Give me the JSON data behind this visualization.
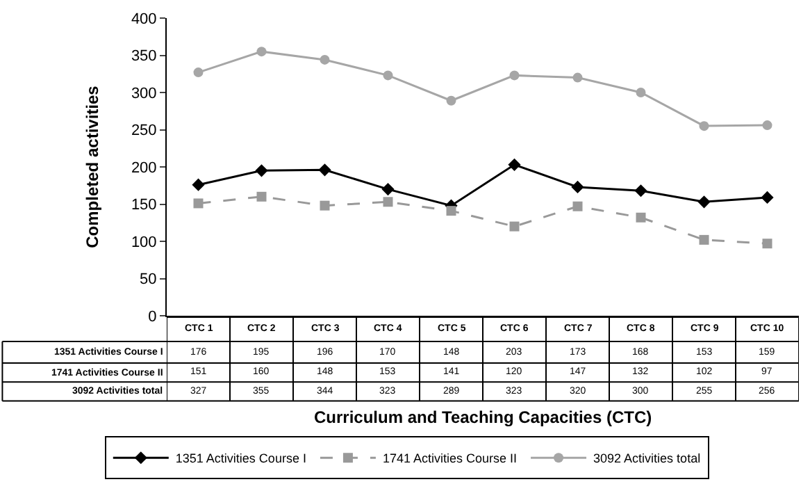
{
  "chart_data": {
    "type": "line",
    "xlabel": "Curriculum and Teaching Capacities (CTC)",
    "ylabel": "Completed activities",
    "categories": [
      "CTC 1",
      "CTC 2",
      "CTC 3",
      "CTC 4",
      "CTC 5",
      "CTC 6",
      "CTC 7",
      "CTC 8",
      "CTC 9",
      "CTC 10"
    ],
    "series": [
      {
        "name": "1351 Activities Course I",
        "color": "#000000",
        "marker": "diamond",
        "line_style": "solid",
        "values": [
          176,
          195,
          196,
          170,
          148,
          203,
          173,
          168,
          153,
          159
        ]
      },
      {
        "name": "1741 Activities Course II",
        "color": "#999999",
        "marker": "square",
        "line_style": "dashed",
        "values": [
          151,
          160,
          148,
          153,
          141,
          120,
          147,
          132,
          102,
          97
        ]
      },
      {
        "name": "3092 Activities total",
        "color": "#a6a6a6",
        "marker": "circle",
        "line_style": "solid",
        "values": [
          327,
          355,
          344,
          323,
          289,
          323,
          320,
          300,
          255,
          256
        ]
      }
    ],
    "ylim": [
      0,
      400
    ],
    "yticks": [
      0,
      50,
      100,
      150,
      200,
      250,
      300,
      350,
      400
    ],
    "grid": false,
    "legend": "bottom",
    "data_labels": true
  }
}
